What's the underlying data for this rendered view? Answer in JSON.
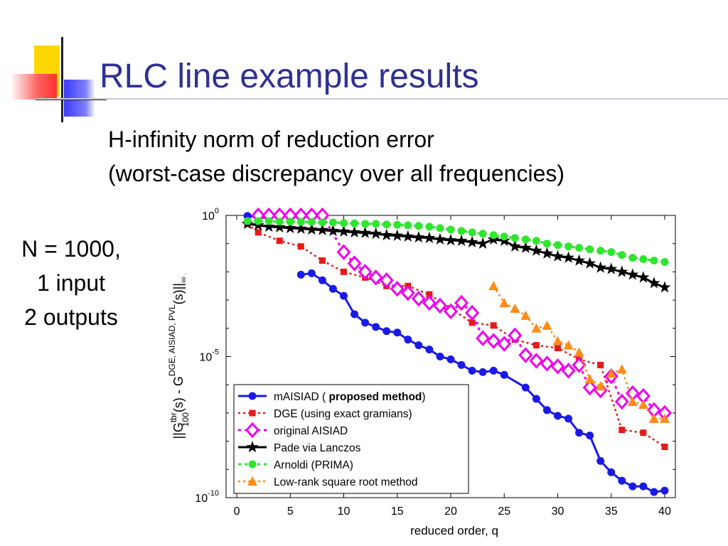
{
  "slide": {
    "title": "RLC line example results",
    "subtitle_line1": "H-infinity norm of reduction error",
    "subtitle_line2": "(worst-case discrepancy over all frequencies)",
    "side_note": [
      "N = 1000,",
      "1 input",
      "2 outputs"
    ]
  },
  "colors": {
    "title": "#2e3192",
    "deco_yellow": "#ffd700",
    "deco_blue": "#3a3aff",
    "deco_red": "#ff3030"
  },
  "chart_data": {
    "type": "line",
    "xlabel": "reduced order, q",
    "ylabel": "||G^{tbr}_{100}(s) - G^{DGE, AISIAD, PVL}(s)||_∞",
    "ylabel_parts": {
      "main1": "||G",
      "sup1": "tbr",
      "sub1": "100",
      "main2": "(s) - G",
      "sup2": "DGE, AISIAD, PVL",
      "main3": "(s)||",
      "sub3": "∞"
    },
    "xlim": [
      -1,
      41
    ],
    "ylim_log10": [
      -10,
      0
    ],
    "yscale": "log",
    "x_ticks": [
      0,
      5,
      10,
      15,
      20,
      25,
      30,
      35,
      40
    ],
    "y_ticks": [
      {
        "exp": 0,
        "base": "10",
        "power": "0"
      },
      {
        "exp": -5,
        "base": "10",
        "power": "-5"
      },
      {
        "exp": -10,
        "base": "10",
        "power": "-10"
      }
    ],
    "legend_position": "bottom-left",
    "series": [
      {
        "name": "mAISIAD ( ",
        "name_bold": "proposed method",
        "name_after": ")",
        "color": "#1a1ae6",
        "dash": "",
        "marker": "circle",
        "width": 3,
        "x": [
          1,
          2,
          3,
          6,
          7,
          8,
          9,
          10,
          11,
          12,
          13,
          14,
          15,
          16,
          17,
          18,
          19,
          20,
          21,
          22,
          23,
          24,
          25,
          27,
          28,
          29,
          30,
          31,
          32,
          33,
          34,
          35,
          36,
          37,
          38,
          39,
          40
        ],
        "log10y": [
          -0.02,
          -0.06,
          -0.1,
          -2.1,
          -2.05,
          -2.3,
          -2.6,
          -2.85,
          -3.5,
          -3.8,
          -3.95,
          -4.1,
          -4.15,
          -4.4,
          -4.6,
          -4.75,
          -5.0,
          -5.1,
          -5.3,
          -5.5,
          -5.55,
          -5.5,
          -5.65,
          -6.1,
          -6.5,
          -6.9,
          -7.1,
          -7.2,
          -7.7,
          -7.8,
          -8.7,
          -9.1,
          -9.4,
          -9.6,
          -9.6,
          -9.8,
          -9.75
        ]
      },
      {
        "name": "DGE (using exact gramians)",
        "color": "#e61a1a",
        "dash": "3,4",
        "marker": "square",
        "width": 2.5,
        "x": [
          1,
          2,
          4,
          6,
          8,
          10,
          12,
          14,
          16,
          18,
          20,
          22,
          24,
          26,
          28,
          30,
          32,
          34,
          36,
          38,
          40
        ],
        "log10y": [
          -0.3,
          -0.6,
          -0.9,
          -1.1,
          -1.6,
          -2.0,
          -2.2,
          -2.5,
          -2.5,
          -2.8,
          -3.3,
          -3.8,
          -3.9,
          -4.4,
          -4.6,
          -4.7,
          -5.1,
          -5.3,
          -7.6,
          -7.7,
          -8.2
        ]
      },
      {
        "name": "original AISIAD",
        "color": "#ee00ee",
        "dash": "4,5",
        "marker": "diamond",
        "width": 3,
        "x": [
          2,
          3,
          4,
          5,
          6,
          7,
          8,
          10,
          11,
          12,
          13,
          14,
          15,
          16,
          17,
          18,
          19,
          20,
          21,
          22,
          23,
          24,
          25,
          26,
          27,
          28,
          29,
          30,
          31,
          32,
          33,
          34,
          35,
          36,
          37,
          38,
          39,
          40
        ],
        "log10y": [
          0,
          0,
          0,
          0,
          0,
          0,
          0,
          -1.3,
          -1.7,
          -2.0,
          -2.2,
          -2.3,
          -2.6,
          -2.75,
          -2.95,
          -3.1,
          -3.2,
          -3.4,
          -3.1,
          -3.45,
          -4.35,
          -4.45,
          -4.55,
          -4.25,
          -4.95,
          -5.15,
          -5.25,
          -5.35,
          -5.5,
          -5.3,
          -6.1,
          -6.2,
          -5.7,
          -6.6,
          -6.3,
          -6.4,
          -6.9,
          -7.0
        ]
      },
      {
        "name": "Pade via Lanczos",
        "color": "#000000",
        "dash": "",
        "marker": "star",
        "width": 3,
        "x": [
          1,
          2,
          3,
          4,
          5,
          6,
          7,
          8,
          9,
          10,
          11,
          12,
          13,
          14,
          15,
          16,
          17,
          18,
          19,
          20,
          21,
          22,
          23,
          24,
          25,
          26,
          27,
          28,
          29,
          30,
          31,
          32,
          33,
          34,
          35,
          36,
          37,
          38,
          39,
          40
        ],
        "log10y": [
          -0.3,
          -0.35,
          -0.4,
          -0.42,
          -0.45,
          -0.47,
          -0.5,
          -0.52,
          -0.55,
          -0.57,
          -0.6,
          -0.62,
          -0.65,
          -0.7,
          -0.72,
          -0.75,
          -0.78,
          -0.8,
          -0.85,
          -0.88,
          -0.9,
          -0.95,
          -1.0,
          -0.85,
          -0.9,
          -1.1,
          -1.15,
          -1.25,
          -1.35,
          -1.45,
          -1.5,
          -1.6,
          -1.7,
          -1.85,
          -1.9,
          -2.0,
          -2.1,
          -2.2,
          -2.4,
          -2.55
        ]
      },
      {
        "name": "Arnoldi (PRIMA)",
        "color": "#2ee62e",
        "dash": "4,5",
        "marker": "circle",
        "width": 3,
        "x": [
          1,
          2,
          3,
          4,
          5,
          6,
          7,
          8,
          9,
          10,
          11,
          12,
          13,
          14,
          15,
          16,
          17,
          18,
          19,
          20,
          21,
          22,
          23,
          24,
          25,
          26,
          27,
          28,
          29,
          30,
          31,
          32,
          33,
          34,
          35,
          36,
          37,
          38,
          39,
          40
        ],
        "log10y": [
          -0.2,
          -0.2,
          -0.2,
          -0.22,
          -0.22,
          -0.23,
          -0.23,
          -0.25,
          -0.25,
          -0.27,
          -0.28,
          -0.3,
          -0.3,
          -0.32,
          -0.33,
          -0.35,
          -0.37,
          -0.4,
          -0.45,
          -0.5,
          -0.55,
          -0.6,
          -0.65,
          -0.7,
          -0.75,
          -0.8,
          -0.85,
          -0.9,
          -1.0,
          -1.05,
          -1.1,
          -1.15,
          -1.2,
          -1.25,
          -1.3,
          -1.4,
          -1.5,
          -1.55,
          -1.6,
          -1.65
        ]
      },
      {
        "name": "Low-rank square root method",
        "color": "#ff8c1a",
        "dash": "3,4",
        "marker": "triangle",
        "width": 2.5,
        "x": [
          24,
          25,
          26,
          27,
          28,
          29,
          30,
          31,
          32,
          33,
          34,
          35,
          36,
          37,
          38,
          39,
          40
        ],
        "log10y": [
          -2.5,
          -3.1,
          -3.3,
          -3.55,
          -4.0,
          -3.9,
          -4.45,
          -4.6,
          -4.85,
          -5.8,
          -6.05,
          -5.6,
          -5.45,
          -6.6,
          -6.7,
          -7.2,
          -7.2
        ]
      }
    ]
  }
}
